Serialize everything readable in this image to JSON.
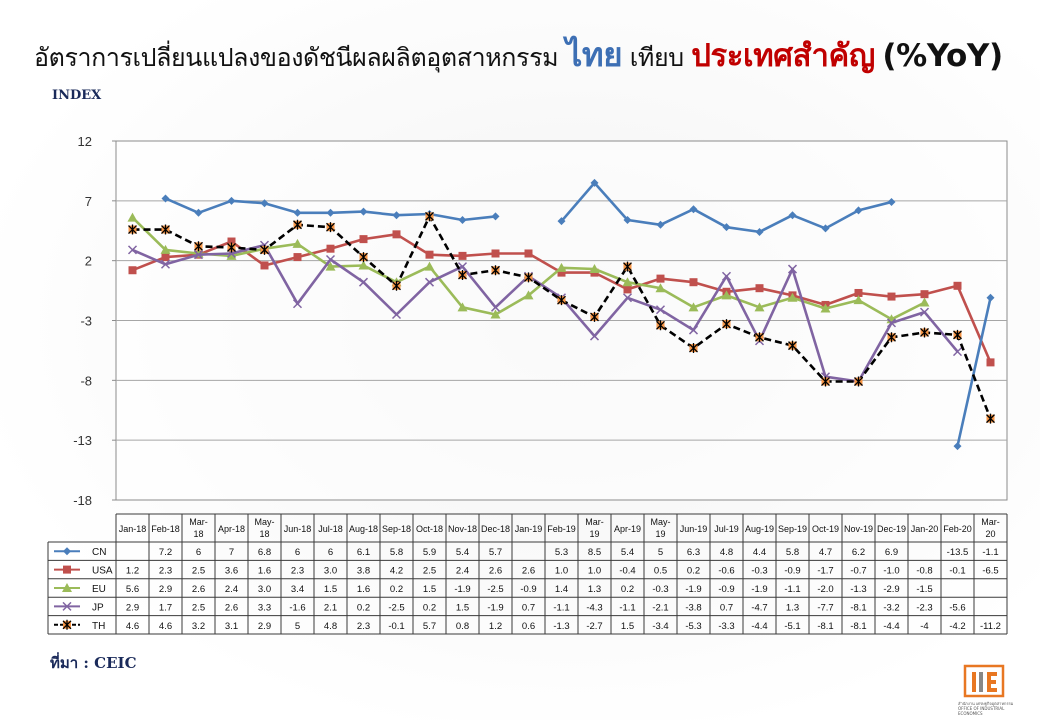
{
  "title": {
    "part1": "อัตราการเปลี่ยนแปลงของดัชนีผลผลิตอุตสาหกรรม",
    "part2": "ไทย",
    "part3": "เทียบ",
    "part4": "ประเทศสำคัญ",
    "part5": "(%YoY)"
  },
  "index_label": "INDEX",
  "source": "ที่มา : CEIC",
  "logo": {
    "line1": "สำนักงาน",
    "line2": "เศรษฐกิจอุตสาหกรรม",
    "line3": "OFFICE",
    "line4": "OF INDUSTRIAL ECONOMICS"
  },
  "colors": {
    "CN": "#4a7ebb",
    "USA": "#c0504d",
    "EU": "#9bbb59",
    "JP": "#8064a2",
    "TH": "#000000",
    "TH_marker": "#f79646"
  },
  "chart_data": {
    "type": "line",
    "ylim": [
      -18,
      12
    ],
    "yticks": [
      12,
      7,
      2,
      -3,
      -8,
      -13,
      -18
    ],
    "grid": true,
    "legend": "table-below",
    "categories": [
      "Jan-18",
      "Feb-18",
      "Mar-18",
      "Apr-18",
      "May-18",
      "Jun-18",
      "Jul-18",
      "Aug-18",
      "Sep-18",
      "Oct-18",
      "Nov-18",
      "Dec-18",
      "Jan-19",
      "Feb-19",
      "Mar-19",
      "Apr-19",
      "May-19",
      "Jun-19",
      "Jul-19",
      "Aug-19",
      "Sep-19",
      "Oct-19",
      "Nov-19",
      "Dec-19",
      "Jan-20",
      "Feb-20",
      "Mar-20"
    ],
    "category_labels": [
      [
        "Jan-18"
      ],
      [
        "Feb-18"
      ],
      [
        "Mar-",
        "18"
      ],
      [
        "Apr-18"
      ],
      [
        "May-",
        "18"
      ],
      [
        "Jun-18"
      ],
      [
        "Jul-18"
      ],
      [
        "Aug-18"
      ],
      [
        "Sep-18"
      ],
      [
        "Oct-18"
      ],
      [
        "Nov-18"
      ],
      [
        "Dec-18"
      ],
      [
        "Jan-19"
      ],
      [
        "Feb-19"
      ],
      [
        "Mar-",
        "19"
      ],
      [
        "Apr-19"
      ],
      [
        "May-",
        "19"
      ],
      [
        "Jun-19"
      ],
      [
        "Jul-19"
      ],
      [
        "Aug-19"
      ],
      [
        "Sep-19"
      ],
      [
        "Oct-19"
      ],
      [
        "Nov-19"
      ],
      [
        "Dec-19"
      ],
      [
        "Jan-20"
      ],
      [
        "Feb-20"
      ],
      [
        "Mar-",
        "20"
      ]
    ],
    "series": [
      {
        "name": "CN",
        "values": [
          null,
          7.2,
          6,
          7,
          6.8,
          6,
          6,
          6.1,
          5.8,
          5.9,
          5.4,
          5.7,
          null,
          5.3,
          8.5,
          5.4,
          5,
          6.3,
          4.8,
          4.4,
          5.8,
          4.7,
          6.2,
          6.9,
          null,
          -13.5,
          -1.1
        ],
        "labels": [
          "",
          "7.2",
          "6",
          "7",
          "6.8",
          "6",
          "6",
          "6.1",
          "5.8",
          "5.9",
          "5.4",
          "5.7",
          "",
          "5.3",
          "8.5",
          "5.4",
          "5",
          "6.3",
          "4.8",
          "4.4",
          "5.8",
          "4.7",
          "6.2",
          "6.9",
          "",
          "-13.5",
          "-1.1"
        ]
      },
      {
        "name": "USA",
        "values": [
          1.2,
          2.3,
          2.5,
          3.6,
          1.6,
          2.3,
          3.0,
          3.8,
          4.2,
          2.5,
          2.4,
          2.6,
          2.6,
          1.0,
          1.0,
          -0.4,
          0.5,
          0.2,
          -0.6,
          -0.3,
          -0.9,
          -1.7,
          -0.7,
          -1.0,
          -0.8,
          -0.1,
          -6.5
        ],
        "labels": [
          "1.2",
          "2.3",
          "2.5",
          "3.6",
          "1.6",
          "2.3",
          "3.0",
          "3.8",
          "4.2",
          "2.5",
          "2.4",
          "2.6",
          "2.6",
          "1.0",
          "1.0",
          "-0.4",
          "0.5",
          "0.2",
          "-0.6",
          "-0.3",
          "-0.9",
          "-1.7",
          "-0.7",
          "-1.0",
          "-0.8",
          "-0.1",
          "-6.5"
        ]
      },
      {
        "name": "EU",
        "values": [
          5.6,
          2.9,
          2.6,
          2.4,
          3.0,
          3.4,
          1.5,
          1.6,
          0.2,
          1.5,
          -1.9,
          -2.5,
          -0.9,
          1.4,
          1.3,
          0.2,
          -0.3,
          -1.9,
          -0.9,
          -1.9,
          -1.1,
          -2.0,
          -1.3,
          -2.9,
          -1.5,
          null,
          null
        ],
        "labels": [
          "5.6",
          "2.9",
          "2.6",
          "2.4",
          "3.0",
          "3.4",
          "1.5",
          "1.6",
          "0.2",
          "1.5",
          "-1.9",
          "-2.5",
          "-0.9",
          "1.4",
          "1.3",
          "0.2",
          "-0.3",
          "-1.9",
          "-0.9",
          "-1.9",
          "-1.1",
          "-2.0",
          "-1.3",
          "-2.9",
          "-1.5",
          "",
          ""
        ]
      },
      {
        "name": "JP",
        "values": [
          2.9,
          1.7,
          2.5,
          2.6,
          3.3,
          -1.6,
          2.1,
          0.2,
          -2.5,
          0.2,
          1.5,
          -1.9,
          0.7,
          -1.1,
          -4.3,
          -1.1,
          -2.1,
          -3.8,
          0.7,
          -4.7,
          1.3,
          -7.7,
          -8.1,
          -3.2,
          -2.3,
          -5.6,
          null
        ],
        "labels": [
          "2.9",
          "1.7",
          "2.5",
          "2.6",
          "3.3",
          "-1.6",
          "2.1",
          "0.2",
          "-2.5",
          "0.2",
          "1.5",
          "-1.9",
          "0.7",
          "-1.1",
          "-4.3",
          "-1.1",
          "-2.1",
          "-3.8",
          "0.7",
          "-4.7",
          "1.3",
          "-7.7",
          "-8.1",
          "-3.2",
          "-2.3",
          "-5.6",
          ""
        ]
      },
      {
        "name": "TH",
        "values": [
          4.6,
          4.6,
          3.2,
          3.1,
          2.9,
          5,
          4.8,
          2.3,
          -0.1,
          5.7,
          0.8,
          1.2,
          0.6,
          -1.3,
          -2.7,
          1.5,
          -3.4,
          -5.3,
          -3.3,
          -4.4,
          -5.1,
          -8.1,
          -8.1,
          -4.4,
          -4,
          -4.2,
          -11.2
        ],
        "labels": [
          "4.6",
          "4.6",
          "3.2",
          "3.1",
          "2.9",
          "5",
          "4.8",
          "2.3",
          "-0.1",
          "5.7",
          "0.8",
          "1.2",
          "0.6",
          "-1.3",
          "-2.7",
          "1.5",
          "-3.4",
          "-5.3",
          "-3.3",
          "-4.4",
          "-5.1",
          "-8.1",
          "-8.1",
          "-4.4",
          "-4",
          "-4.2",
          "-11.2"
        ]
      }
    ]
  }
}
